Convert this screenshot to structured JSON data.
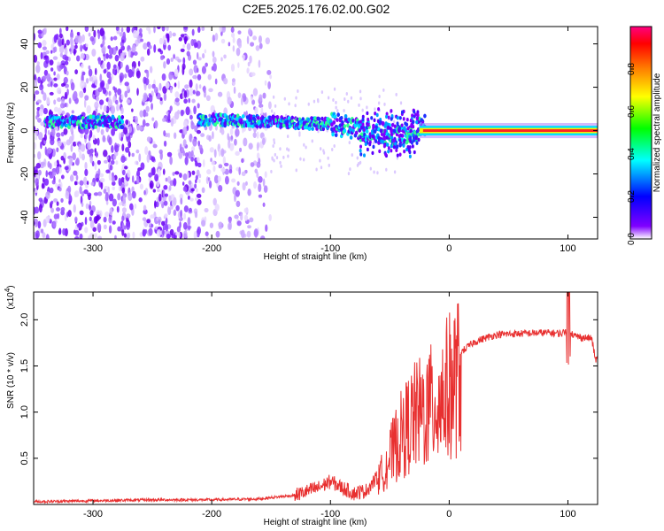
{
  "chart_data": [
    {
      "type": "heatmap",
      "title": "C2E5.2025.176.02.00.G02",
      "xlabel": "Height of straight line (km)",
      "ylabel": "Frequency (Hz)",
      "xlim": [
        -350,
        125
      ],
      "ylim": [
        -50,
        48
      ],
      "xticks": [
        -300,
        -200,
        -100,
        0,
        100
      ],
      "yticks": [
        -40,
        -20,
        0,
        20,
        40
      ],
      "colorbar": {
        "label": "Normalized spectral amplitude",
        "range": [
          0,
          1
        ],
        "ticks": [
          "0.0",
          "0.2",
          "0.4",
          "0.6",
          "0.8"
        ],
        "colormap": [
          "#ffffff",
          "#8000ff",
          "#0000ff",
          "#00ffff",
          "#00ff00",
          "#ffff00",
          "#ff8000",
          "#ff0000",
          "#ff0080"
        ]
      },
      "ridge": {
        "x": [
          -340,
          -300,
          -280,
          -200,
          -150,
          -100,
          -60,
          -40,
          -20,
          0,
          50,
          100,
          125
        ],
        "center_freq": [
          4,
          4,
          4,
          5,
          4,
          3,
          -1,
          -3,
          2,
          0,
          0,
          0,
          0
        ]
      },
      "noise_region_x": [
        -350,
        -150
      ]
    },
    {
      "type": "line",
      "title": "",
      "xlabel": "Height of straight line (km)",
      "ylabel": "SNR (10 * v/v)",
      "y_multiplier": "(x10",
      "y_multiplier_exp": "4",
      "xlim": [
        -350,
        125
      ],
      "ylim": [
        0,
        2.3
      ],
      "xticks": [
        -300,
        -200,
        -100,
        0,
        100
      ],
      "yticks": [
        "0.5",
        "1.0",
        "1.5",
        "2.0"
      ],
      "series": [
        {
          "color": "#e83030",
          "x": [
            -350,
            -300,
            -250,
            -200,
            -160,
            -130,
            -110,
            -100,
            -90,
            -80,
            -70,
            -60,
            -50,
            -40,
            -30,
            -20,
            -10,
            0,
            10,
            20,
            30,
            40,
            60,
            80,
            95,
            100,
            105,
            110,
            120,
            123,
            125
          ],
          "y": [
            0.03,
            0.04,
            0.05,
            0.05,
            0.06,
            0.1,
            0.18,
            0.25,
            0.18,
            0.12,
            0.15,
            0.3,
            0.6,
            0.9,
            1.1,
            1.2,
            1.3,
            1.5,
            1.65,
            1.75,
            1.8,
            1.84,
            1.85,
            1.86,
            1.85,
            1.9,
            1.83,
            1.81,
            1.8,
            1.58,
            1.56
          ]
        }
      ]
    }
  ]
}
